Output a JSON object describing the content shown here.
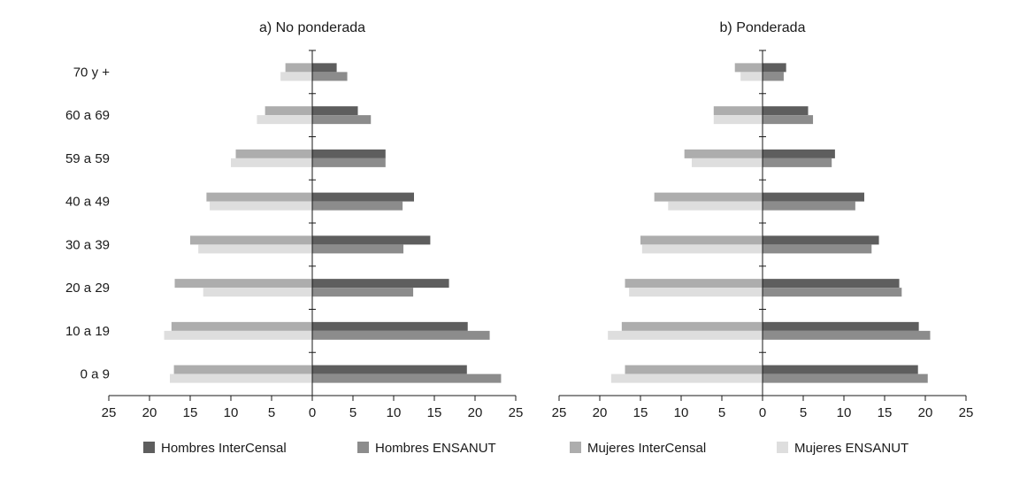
{
  "chart_data": [
    {
      "type": "bar",
      "title": "a) No ponderada",
      "xlabel": "",
      "ylabel": "",
      "categories": [
        "0 a 9",
        "10 a 19",
        "20 a 29",
        "30 a 39",
        "40 a 49",
        "59 a 59",
        "60 a 69",
        "70 y +"
      ],
      "xlim": [
        -25,
        25
      ],
      "x_ticks": [
        "25",
        "20",
        "15",
        "10",
        "5",
        "0",
        "5",
        "10",
        "15",
        "20",
        "25"
      ],
      "grid": false,
      "series": [
        {
          "name": "Hombres InterCensal",
          "side": "right",
          "color": "#5e5e5e",
          "values": [
            19.0,
            19.1,
            16.8,
            14.5,
            12.5,
            9.0,
            5.6,
            3.0
          ]
        },
        {
          "name": "Hombres ENSANUT",
          "side": "right",
          "color": "#8c8c8c",
          "values": [
            23.2,
            21.8,
            12.4,
            11.2,
            11.1,
            9.0,
            7.2,
            4.3
          ]
        },
        {
          "name": "Mujeres InterCensal",
          "side": "left",
          "color": "#adadad",
          "values": [
            17.0,
            17.3,
            16.9,
            15.0,
            13.0,
            9.4,
            5.8,
            3.3
          ]
        },
        {
          "name": "Mujeres ENSANUT",
          "side": "left",
          "color": "#dedede",
          "values": [
            17.5,
            18.2,
            13.4,
            14.0,
            12.6,
            10.0,
            6.8,
            3.9
          ]
        }
      ]
    },
    {
      "type": "bar",
      "title": "b) Ponderada",
      "xlabel": "",
      "ylabel": "",
      "categories": [
        "0 a 9",
        "10 a 19",
        "20 a 29",
        "30 a 39",
        "40 a 49",
        "59 a 59",
        "60 a 69",
        "70 y +"
      ],
      "xlim": [
        -25,
        25
      ],
      "x_ticks": [
        "25",
        "20",
        "15",
        "10",
        "5",
        "0",
        "5",
        "10",
        "15",
        "20",
        "25"
      ],
      "grid": false,
      "series": [
        {
          "name": "Hombres InterCensal",
          "side": "right",
          "color": "#5e5e5e",
          "values": [
            19.1,
            19.2,
            16.8,
            14.3,
            12.5,
            8.9,
            5.6,
            2.9
          ]
        },
        {
          "name": "Hombres ENSANUT",
          "side": "right",
          "color": "#8c8c8c",
          "values": [
            20.3,
            20.6,
            17.1,
            13.4,
            11.4,
            8.5,
            6.2,
            2.6
          ]
        },
        {
          "name": "Mujeres InterCensal",
          "side": "left",
          "color": "#adadad",
          "values": [
            16.9,
            17.3,
            16.9,
            15.0,
            13.3,
            9.6,
            6.0,
            3.4
          ]
        },
        {
          "name": "Mujeres ENSANUT",
          "side": "left",
          "color": "#dedede",
          "values": [
            18.6,
            19.0,
            16.4,
            14.8,
            11.6,
            8.7,
            6.0,
            2.7
          ]
        }
      ]
    }
  ],
  "legend": {
    "position": "bottom",
    "items": [
      {
        "label": "Hombres InterCensal",
        "color": "#5e5e5e"
      },
      {
        "label": "Hombres ENSANUT",
        "color": "#8c8c8c"
      },
      {
        "label": "Mujeres InterCensal",
        "color": "#adadad"
      },
      {
        "label": "Mujeres ENSANUT",
        "color": "#dedede"
      }
    ]
  }
}
